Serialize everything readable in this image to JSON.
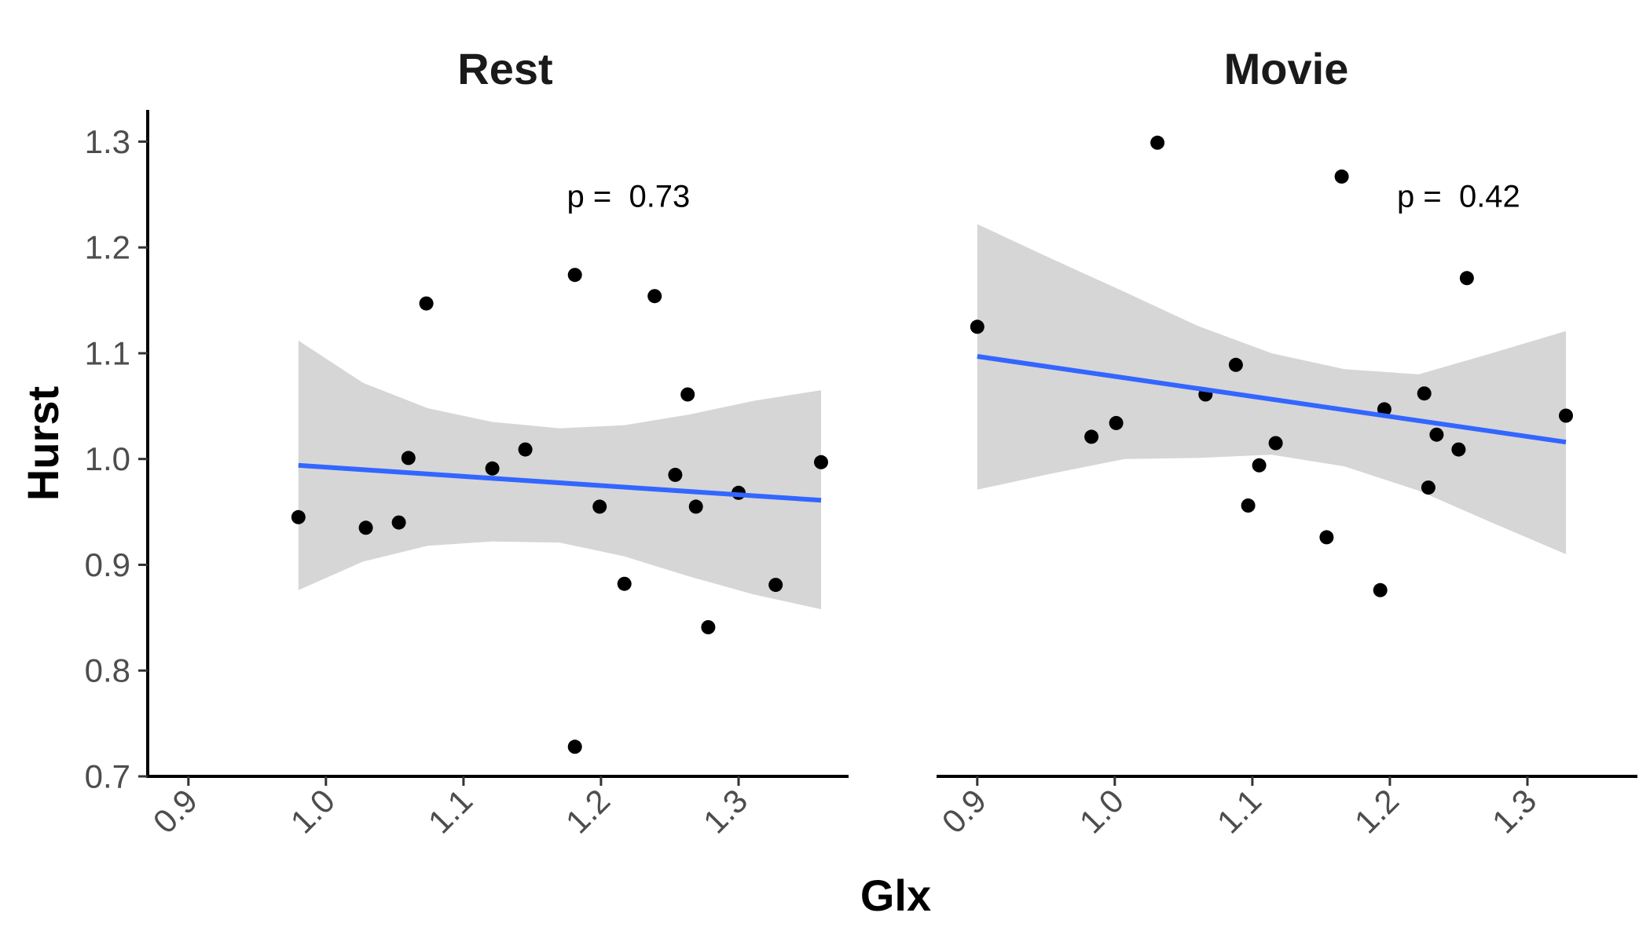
{
  "chart_data": {
    "type": "scatter",
    "xlabel": "Glx",
    "ylabel": "Hurst",
    "xlim": [
      0.875,
      1.38
    ],
    "ylim": [
      0.7,
      1.33
    ],
    "x_ticks": [
      0.9,
      1.0,
      1.1,
      1.2,
      1.3
    ],
    "x_tick_labels": [
      "0.9",
      "1.0",
      "1.1",
      "1.2",
      "1.3"
    ],
    "y_ticks": [
      0.7,
      0.8,
      0.9,
      1.0,
      1.1,
      1.2,
      1.3
    ],
    "y_tick_labels": [
      "0.7",
      "0.8",
      "0.9",
      "1.0",
      "1.1",
      "1.2",
      "1.3"
    ],
    "grid": false,
    "colors": {
      "point": "#000000",
      "fit_line": "#3366ff",
      "ribbon": "#d6d6d6"
    },
    "panels": [
      {
        "title": "Rest",
        "annotation": "p =  0.73",
        "annotation_pos": [
          1.22,
          1.248
        ],
        "points": [
          [
            0.98,
            0.945
          ],
          [
            1.029,
            0.935
          ],
          [
            1.053,
            0.94
          ],
          [
            1.06,
            1.001
          ],
          [
            1.073,
            1.147
          ],
          [
            1.121,
            0.991
          ],
          [
            1.145,
            1.009
          ],
          [
            1.181,
            1.174
          ],
          [
            1.181,
            0.728
          ],
          [
            1.199,
            0.955
          ],
          [
            1.217,
            0.882
          ],
          [
            1.239,
            1.154
          ],
          [
            1.254,
            0.985
          ],
          [
            1.263,
            1.061
          ],
          [
            1.269,
            0.955
          ],
          [
            1.278,
            0.841
          ],
          [
            1.3,
            0.968
          ],
          [
            1.327,
            0.881
          ],
          [
            1.36,
            0.997
          ]
        ],
        "fit": {
          "x": [
            0.98,
            1.36
          ],
          "y": [
            0.994,
            0.961
          ]
        },
        "ribbon": {
          "x": [
            0.98,
            1.027,
            1.074,
            1.121,
            1.17,
            1.217,
            1.264,
            1.311,
            1.36
          ],
          "upper": [
            1.112,
            1.072,
            1.048,
            1.035,
            1.029,
            1.032,
            1.042,
            1.055,
            1.065
          ],
          "lower": [
            0.876,
            0.903,
            0.918,
            0.922,
            0.921,
            0.908,
            0.889,
            0.872,
            0.858
          ]
        }
      },
      {
        "title": "Movie",
        "annotation": "p =  0.42",
        "annotation_pos": [
          1.25,
          1.248
        ],
        "points": [
          [
            0.9,
            1.125
          ],
          [
            0.983,
            1.021
          ],
          [
            1.001,
            1.034
          ],
          [
            1.031,
            1.299
          ],
          [
            1.066,
            1.061
          ],
          [
            1.088,
            1.089
          ],
          [
            1.097,
            0.956
          ],
          [
            1.105,
            0.994
          ],
          [
            1.117,
            1.015
          ],
          [
            1.154,
            0.926
          ],
          [
            1.165,
            1.267
          ],
          [
            1.193,
            0.876
          ],
          [
            1.196,
            1.047
          ],
          [
            1.225,
            1.062
          ],
          [
            1.228,
            0.973
          ],
          [
            1.234,
            1.023
          ],
          [
            1.25,
            1.009
          ],
          [
            1.256,
            1.171
          ],
          [
            1.328,
            1.041
          ]
        ],
        "fit": {
          "x": [
            0.9,
            1.328
          ],
          "y": [
            1.097,
            1.016
          ]
        },
        "ribbon": {
          "x": [
            0.9,
            0.953,
            1.007,
            1.06,
            1.114,
            1.167,
            1.221,
            1.274,
            1.328
          ],
          "upper": [
            1.222,
            1.19,
            1.158,
            1.126,
            1.1,
            1.085,
            1.08,
            1.1,
            1.121
          ],
          "lower": [
            0.971,
            0.986,
            1.0,
            1.001,
            1.004,
            0.993,
            0.97,
            0.94,
            0.91
          ]
        }
      }
    ]
  }
}
